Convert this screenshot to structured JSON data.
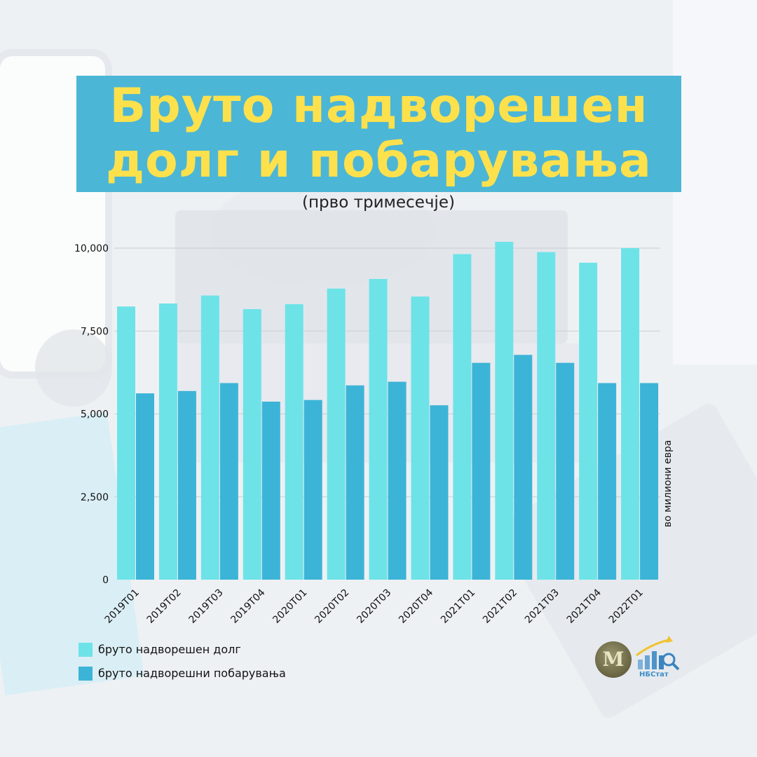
{
  "title_line1": "Бруто надворешен",
  "title_line2": "долг и побарувања",
  "subtitle": "(прво тримесечје)",
  "unit_label": "во милиони евра",
  "legend": [
    {
      "label": "бруто надворешен долг",
      "color": "#6de3e8"
    },
    {
      "label": "бруто надворешни побарувања",
      "color": "#3cb4d7"
    }
  ],
  "logo": {
    "nbstat_text": "НБСтат",
    "seal_text": "М",
    "seal_icon": "central-bank-seal-icon",
    "nbstat_icon": "bar-chart-magnifier-icon"
  },
  "colors": {
    "title_bg": "#4cb6d6",
    "title_text": "#fce14d",
    "debt": "#6de3e8",
    "claims": "#3cb4d7",
    "grid": "#c9cdd1"
  },
  "chart_data": {
    "type": "bar",
    "categories": [
      "2019Т01",
      "2019Т02",
      "2019Т03",
      "2019Т04",
      "2020Т01",
      "2020Т02",
      "2020Т03",
      "2020Т04",
      "2021Т01",
      "2021Т02",
      "2021Т03",
      "2021Т04",
      "2022Т01"
    ],
    "series": [
      {
        "name": "бруто надворешен долг",
        "values": [
          8240,
          8330,
          8570,
          8160,
          8310,
          8780,
          9070,
          8540,
          9820,
          10190,
          9880,
          9560,
          10000
        ]
      },
      {
        "name": "бруто надворешни побарувања",
        "values": [
          5620,
          5690,
          5930,
          5370,
          5420,
          5860,
          5970,
          5260,
          6540,
          6780,
          6540,
          5930,
          5930
        ]
      }
    ],
    "yticks": [
      "0",
      "2,500",
      "5,000",
      "7,500",
      "10,000"
    ],
    "ytick_values": [
      0,
      2500,
      5000,
      7500,
      10000
    ],
    "ylim": [
      0,
      10000
    ],
    "grid": true,
    "legend_position": "bottom-left"
  }
}
